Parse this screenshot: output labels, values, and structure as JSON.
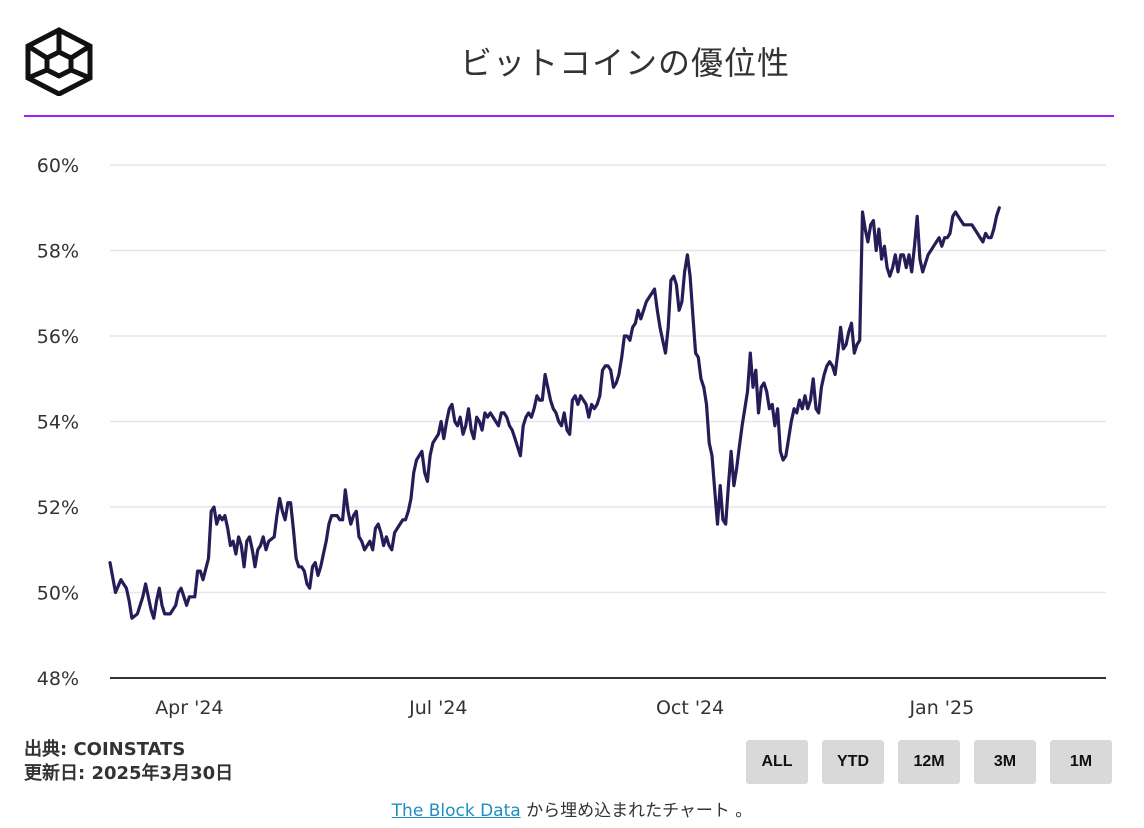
{
  "header": {
    "title": "ビットコインの優位性",
    "logo": "cube-logo-icon"
  },
  "colors": {
    "accent_rule": "#a020f0",
    "line": "#261d58",
    "grid": "#e6e6e6",
    "button_bg": "#d9d9d9",
    "link": "#1f8dc2"
  },
  "chart_data": {
    "type": "line",
    "title": "ビットコインの優位性",
    "xlabel": "",
    "ylabel": "",
    "ylim": [
      48,
      60
    ],
    "y_ticks": [
      "60%",
      "58%",
      "56%",
      "54%",
      "52%",
      "50%",
      "48%"
    ],
    "y_tick_values": [
      60,
      58,
      56,
      54,
      52,
      50,
      48
    ],
    "x_ticks": [
      "Apr '24",
      "Jul '24",
      "Oct '24",
      "Jan '25"
    ],
    "x_tick_index": [
      29,
      120,
      212,
      304
    ],
    "x_range_days": [
      0,
      364
    ],
    "grid": true,
    "series": [
      {
        "name": "Bitcoin dominance",
        "x_unit": "days since 2024-03-01",
        "points": [
          [
            0,
            50.7
          ],
          [
            2,
            50.0
          ],
          [
            4,
            50.3
          ],
          [
            6,
            50.1
          ],
          [
            7,
            49.8
          ],
          [
            8,
            49.4
          ],
          [
            10,
            49.5
          ],
          [
            12,
            49.9
          ],
          [
            13,
            50.2
          ],
          [
            14,
            49.9
          ],
          [
            15,
            49.6
          ],
          [
            16,
            49.4
          ],
          [
            17,
            49.8
          ],
          [
            18,
            50.1
          ],
          [
            19,
            49.7
          ],
          [
            20,
            49.5
          ],
          [
            22,
            49.5
          ],
          [
            24,
            49.7
          ],
          [
            25,
            50.0
          ],
          [
            26,
            50.1
          ],
          [
            27,
            49.9
          ],
          [
            28,
            49.7
          ],
          [
            29,
            49.9
          ],
          [
            30,
            49.9
          ],
          [
            31,
            49.9
          ],
          [
            32,
            50.5
          ],
          [
            33,
            50.5
          ],
          [
            34,
            50.3
          ],
          [
            36,
            50.8
          ],
          [
            37,
            51.9
          ],
          [
            38,
            52.0
          ],
          [
            39,
            51.6
          ],
          [
            40,
            51.8
          ],
          [
            41,
            51.7
          ],
          [
            42,
            51.8
          ],
          [
            43,
            51.5
          ],
          [
            44,
            51.1
          ],
          [
            45,
            51.2
          ],
          [
            46,
            50.9
          ],
          [
            47,
            51.3
          ],
          [
            48,
            51.1
          ],
          [
            49,
            50.6
          ],
          [
            50,
            51.2
          ],
          [
            51,
            51.3
          ],
          [
            52,
            51.0
          ],
          [
            53,
            50.6
          ],
          [
            54,
            51.0
          ],
          [
            55,
            51.1
          ],
          [
            56,
            51.3
          ],
          [
            57,
            51.0
          ],
          [
            58,
            51.2
          ],
          [
            60,
            51.3
          ],
          [
            61,
            51.8
          ],
          [
            62,
            52.2
          ],
          [
            63,
            51.9
          ],
          [
            64,
            51.7
          ],
          [
            65,
            52.1
          ],
          [
            66,
            52.1
          ],
          [
            67,
            51.5
          ],
          [
            68,
            50.8
          ],
          [
            69,
            50.6
          ],
          [
            70,
            50.6
          ],
          [
            71,
            50.5
          ],
          [
            72,
            50.2
          ],
          [
            73,
            50.1
          ],
          [
            74,
            50.6
          ],
          [
            75,
            50.7
          ],
          [
            76,
            50.4
          ],
          [
            77,
            50.6
          ],
          [
            78,
            50.9
          ],
          [
            79,
            51.2
          ],
          [
            80,
            51.6
          ],
          [
            81,
            51.8
          ],
          [
            82,
            51.8
          ],
          [
            83,
            51.8
          ],
          [
            84,
            51.7
          ],
          [
            85,
            51.7
          ],
          [
            86,
            52.4
          ],
          [
            87,
            51.9
          ],
          [
            88,
            51.6
          ],
          [
            89,
            51.8
          ],
          [
            90,
            51.9
          ],
          [
            91,
            51.3
          ],
          [
            92,
            51.2
          ],
          [
            93,
            51.0
          ],
          [
            94,
            51.1
          ],
          [
            95,
            51.2
          ],
          [
            96,
            51.0
          ],
          [
            97,
            51.5
          ],
          [
            98,
            51.6
          ],
          [
            99,
            51.4
          ],
          [
            100,
            51.1
          ],
          [
            101,
            51.3
          ],
          [
            102,
            51.1
          ],
          [
            103,
            51.0
          ],
          [
            104,
            51.4
          ],
          [
            105,
            51.5
          ],
          [
            106,
            51.6
          ],
          [
            107,
            51.7
          ],
          [
            108,
            51.7
          ],
          [
            109,
            51.9
          ],
          [
            110,
            52.2
          ],
          [
            111,
            52.8
          ],
          [
            112,
            53.1
          ],
          [
            113,
            53.2
          ],
          [
            114,
            53.3
          ],
          [
            115,
            52.8
          ],
          [
            116,
            52.6
          ],
          [
            117,
            53.2
          ],
          [
            118,
            53.5
          ],
          [
            119,
            53.6
          ],
          [
            120,
            53.7
          ],
          [
            121,
            54.0
          ],
          [
            122,
            53.6
          ],
          [
            123,
            54.0
          ],
          [
            124,
            54.3
          ],
          [
            125,
            54.4
          ],
          [
            126,
            54.0
          ],
          [
            127,
            53.9
          ],
          [
            128,
            54.1
          ],
          [
            129,
            53.7
          ],
          [
            130,
            53.9
          ],
          [
            131,
            54.3
          ],
          [
            132,
            53.8
          ],
          [
            133,
            53.6
          ],
          [
            134,
            54.1
          ],
          [
            135,
            54.0
          ],
          [
            136,
            53.8
          ],
          [
            137,
            54.2
          ],
          [
            138,
            54.1
          ],
          [
            139,
            54.2
          ],
          [
            140,
            54.1
          ],
          [
            141,
            54.0
          ],
          [
            142,
            53.9
          ],
          [
            143,
            54.2
          ],
          [
            144,
            54.2
          ],
          [
            145,
            54.1
          ],
          [
            146,
            53.9
          ],
          [
            147,
            53.8
          ],
          [
            148,
            53.6
          ],
          [
            149,
            53.4
          ],
          [
            150,
            53.2
          ],
          [
            151,
            53.9
          ],
          [
            152,
            54.1
          ],
          [
            153,
            54.2
          ],
          [
            154,
            54.1
          ],
          [
            155,
            54.3
          ],
          [
            156,
            54.6
          ],
          [
            157,
            54.5
          ],
          [
            158,
            54.5
          ],
          [
            159,
            55.1
          ],
          [
            160,
            54.8
          ],
          [
            161,
            54.5
          ],
          [
            162,
            54.3
          ],
          [
            163,
            54.2
          ],
          [
            164,
            54.0
          ],
          [
            165,
            53.9
          ],
          [
            166,
            54.2
          ],
          [
            167,
            53.8
          ],
          [
            168,
            53.7
          ],
          [
            169,
            54.5
          ],
          [
            170,
            54.6
          ],
          [
            171,
            54.4
          ],
          [
            172,
            54.6
          ],
          [
            173,
            54.5
          ],
          [
            174,
            54.4
          ],
          [
            175,
            54.1
          ],
          [
            176,
            54.4
          ],
          [
            177,
            54.3
          ],
          [
            178,
            54.4
          ],
          [
            179,
            54.6
          ],
          [
            180,
            55.2
          ],
          [
            181,
            55.3
          ],
          [
            182,
            55.3
          ],
          [
            183,
            55.2
          ],
          [
            184,
            54.8
          ],
          [
            185,
            54.9
          ],
          [
            186,
            55.1
          ],
          [
            187,
            55.5
          ],
          [
            188,
            56.0
          ],
          [
            189,
            56.0
          ],
          [
            190,
            55.9
          ],
          [
            191,
            56.2
          ],
          [
            192,
            56.3
          ],
          [
            193,
            56.6
          ],
          [
            194,
            56.4
          ],
          [
            195,
            56.6
          ],
          [
            196,
            56.8
          ],
          [
            197,
            56.9
          ],
          [
            198,
            57.0
          ],
          [
            199,
            57.1
          ],
          [
            200,
            56.6
          ],
          [
            201,
            56.2
          ],
          [
            202,
            55.9
          ],
          [
            203,
            55.6
          ],
          [
            204,
            56.2
          ],
          [
            205,
            57.3
          ],
          [
            206,
            57.4
          ],
          [
            207,
            57.2
          ],
          [
            208,
            56.6
          ],
          [
            209,
            56.8
          ],
          [
            210,
            57.5
          ],
          [
            211,
            57.9
          ],
          [
            212,
            57.4
          ],
          [
            213,
            56.5
          ],
          [
            214,
            55.6
          ],
          [
            215,
            55.5
          ],
          [
            216,
            55.0
          ],
          [
            217,
            54.8
          ],
          [
            218,
            54.4
          ],
          [
            219,
            53.5
          ],
          [
            220,
            53.2
          ],
          [
            221,
            52.4
          ],
          [
            222,
            51.6
          ],
          [
            223,
            52.5
          ],
          [
            224,
            51.7
          ],
          [
            225,
            51.6
          ],
          [
            226,
            52.5
          ],
          [
            227,
            53.3
          ],
          [
            228,
            52.5
          ],
          [
            229,
            52.9
          ],
          [
            230,
            53.4
          ],
          [
            231,
            53.9
          ],
          [
            232,
            54.3
          ],
          [
            233,
            54.7
          ],
          [
            234,
            55.6
          ],
          [
            235,
            54.8
          ],
          [
            236,
            55.2
          ],
          [
            237,
            54.2
          ],
          [
            238,
            54.8
          ],
          [
            239,
            54.9
          ],
          [
            240,
            54.7
          ],
          [
            241,
            54.3
          ],
          [
            242,
            54.4
          ],
          [
            243,
            53.9
          ],
          [
            244,
            54.3
          ],
          [
            245,
            53.3
          ],
          [
            246,
            53.1
          ],
          [
            247,
            53.2
          ],
          [
            248,
            53.6
          ],
          [
            249,
            54.0
          ],
          [
            250,
            54.3
          ],
          [
            251,
            54.2
          ],
          [
            252,
            54.5
          ],
          [
            253,
            54.3
          ],
          [
            254,
            54.6
          ],
          [
            255,
            54.3
          ],
          [
            256,
            54.5
          ],
          [
            257,
            55.0
          ],
          [
            258,
            54.3
          ],
          [
            259,
            54.2
          ],
          [
            260,
            54.8
          ],
          [
            261,
            55.1
          ],
          [
            262,
            55.3
          ],
          [
            263,
            55.4
          ],
          [
            264,
            55.3
          ],
          [
            265,
            55.1
          ],
          [
            266,
            55.6
          ],
          [
            267,
            56.2
          ],
          [
            268,
            55.7
          ],
          [
            269,
            55.8
          ],
          [
            270,
            56.1
          ],
          [
            271,
            56.3
          ],
          [
            272,
            55.6
          ],
          [
            273,
            55.8
          ],
          [
            274,
            55.9
          ],
          [
            275,
            58.9
          ],
          [
            276,
            58.5
          ],
          [
            277,
            58.2
          ],
          [
            278,
            58.6
          ],
          [
            279,
            58.7
          ],
          [
            280,
            58.0
          ],
          [
            281,
            58.5
          ],
          [
            282,
            57.8
          ],
          [
            283,
            58.1
          ],
          [
            284,
            57.6
          ],
          [
            285,
            57.4
          ],
          [
            286,
            57.6
          ],
          [
            287,
            57.9
          ],
          [
            288,
            57.5
          ],
          [
            289,
            57.9
          ],
          [
            290,
            57.9
          ],
          [
            291,
            57.6
          ],
          [
            292,
            57.9
          ],
          [
            293,
            57.5
          ],
          [
            294,
            58.1
          ],
          [
            295,
            58.8
          ],
          [
            296,
            57.8
          ],
          [
            297,
            57.5
          ],
          [
            298,
            57.7
          ],
          [
            299,
            57.9
          ],
          [
            300,
            58.0
          ],
          [
            301,
            58.1
          ],
          [
            302,
            58.2
          ],
          [
            303,
            58.3
          ],
          [
            304,
            58.1
          ],
          [
            305,
            58.3
          ],
          [
            306,
            58.3
          ],
          [
            307,
            58.4
          ],
          [
            308,
            58.8
          ],
          [
            309,
            58.9
          ],
          [
            310,
            58.8
          ],
          [
            311,
            58.7
          ],
          [
            312,
            58.6
          ],
          [
            313,
            58.6
          ],
          [
            314,
            58.6
          ],
          [
            315,
            58.6
          ],
          [
            316,
            58.5
          ],
          [
            317,
            58.4
          ],
          [
            318,
            58.3
          ],
          [
            319,
            58.2
          ],
          [
            320,
            58.4
          ],
          [
            321,
            58.3
          ],
          [
            322,
            58.3
          ],
          [
            323,
            58.5
          ],
          [
            324,
            58.8
          ],
          [
            325,
            59.0
          ]
        ]
      }
    ]
  },
  "source": {
    "line1": "出典: COINSTATS",
    "line2": "更新日: 2025年3月30日"
  },
  "ranges": [
    "ALL",
    "YTD",
    "12M",
    "3M",
    "1M"
  ],
  "footer": {
    "link_text": "The Block Data",
    "suffix": " から埋め込まれたチャート 。"
  }
}
